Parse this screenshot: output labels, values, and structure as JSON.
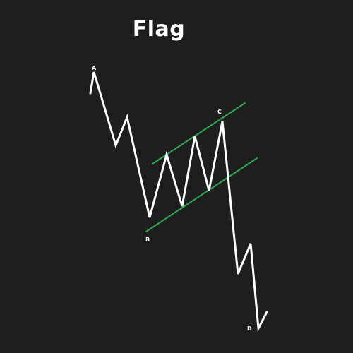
{
  "title": "Flag",
  "points": {
    "a": "A",
    "b": "B",
    "c": "C",
    "d": "D"
  },
  "colors": {
    "background": "#1e1e1e",
    "price_line": "#ffffff",
    "channel_lines": "#2fa84f",
    "text": "#ffffff"
  }
}
